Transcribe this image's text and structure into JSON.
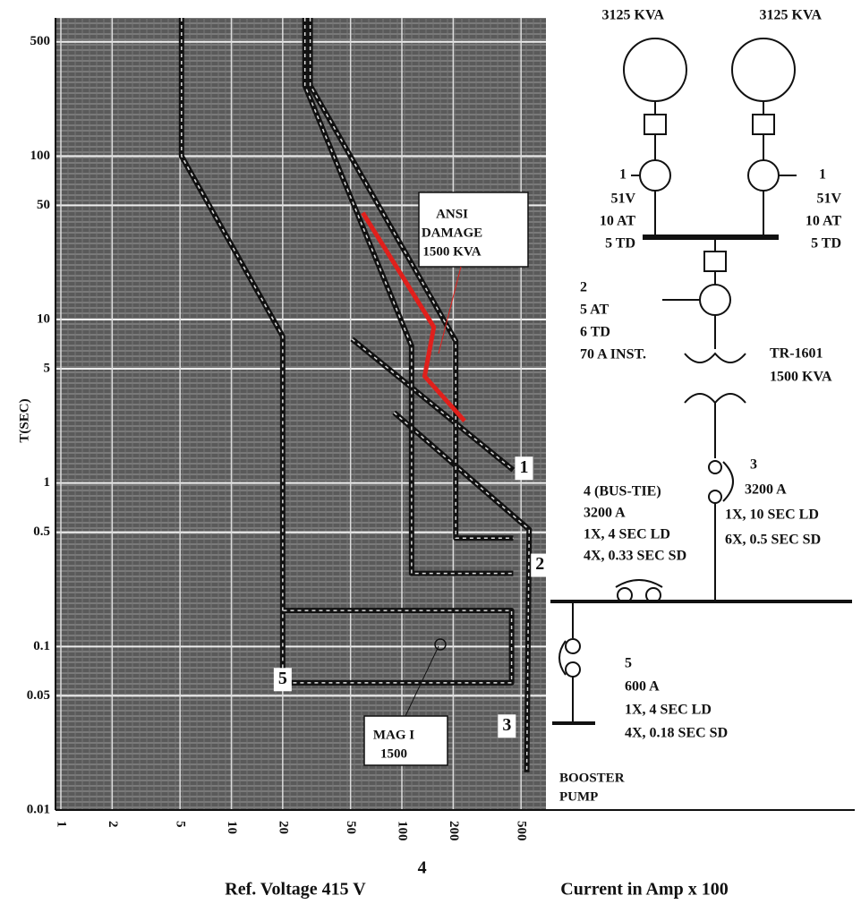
{
  "chart_data": {
    "type": "line",
    "ylabel": "T(SEC)",
    "xlabel": "Current in Amp x 100",
    "note": "Ref. Voltage 415 V",
    "xlog": true,
    "ylog": true,
    "grid": true,
    "xlim": [
      0.93,
      700
    ],
    "ylim": [
      0.01,
      700
    ],
    "xticks": [
      1,
      2,
      5,
      10,
      20,
      50,
      100,
      200,
      500
    ],
    "yticks": [
      500,
      100,
      50,
      10,
      5,
      1,
      0.5,
      0.1,
      0.05,
      0.01
    ],
    "series": [
      {
        "name": "1",
        "color": "#111111",
        "x": [
          51,
          450
        ],
        "values": [
          7.6,
          1.2
        ]
      },
      {
        "name": "2",
        "color": "#111111",
        "x": [
          90,
          558,
          540
        ],
        "values": [
          2.7,
          0.52,
          0.017
        ]
      },
      {
        "name": "3",
        "color": "#111111",
        "x": [
          29,
          29,
          207,
          207,
          450
        ],
        "values": [
          700,
          270,
          7.4,
          0.46,
          0.46
        ]
      },
      {
        "name": "4",
        "color": "#111111",
        "x": [
          27,
          27,
          114,
          114,
          450
        ],
        "values": [
          700,
          270,
          6.9,
          0.28,
          0.28
        ]
      },
      {
        "name": "5",
        "color": "#111111",
        "x": [
          5.1,
          5.1,
          20,
          20,
          440,
          440,
          20
        ],
        "values": [
          700,
          100,
          7.9,
          0.06,
          0.06,
          0.166,
          0.166
        ]
      },
      {
        "color": "#e0201c",
        "x": [
          59,
          154,
          136,
          233
        ],
        "values": [
          45,
          9,
          4.5,
          2.4
        ]
      }
    ],
    "annotations": [
      [
        "ANSI",
        "DAMAGE",
        "1500 KVA"
      ],
      [
        "MAG I",
        "1500"
      ],
      [
        "BOOSTER",
        "PUMP"
      ]
    ]
  },
  "diagram": {
    "nodes": [
      {
        "lines": [
          "3125 KVA"
        ]
      },
      {
        "lines": [
          "3125 KVA"
        ]
      },
      {
        "lines": [
          "1",
          "51V",
          "10 AT",
          "5 TD"
        ]
      },
      {
        "lines": [
          "1",
          "51V",
          "10 AT",
          "5 TD"
        ]
      },
      {
        "lines": [
          "2",
          "5 AT",
          "6 TD",
          "70 A INST."
        ]
      },
      {
        "lines": [
          "TR-1601",
          "1500 KVA"
        ]
      },
      {
        "lines": [
          "3",
          "3200 A",
          "1X, 10 SEC LD",
          "6X, 0.5 SEC SD"
        ]
      },
      {
        "lines": [
          "4 (BUS-TIE)",
          "3200 A",
          "1X, 4 SEC  LD",
          "4X, 0.33 SEC SD"
        ]
      },
      {
        "lines": [
          "5",
          "600 A",
          "1X, 4 SEC LD",
          "4X, 0.18 SEC SD"
        ]
      }
    ]
  }
}
